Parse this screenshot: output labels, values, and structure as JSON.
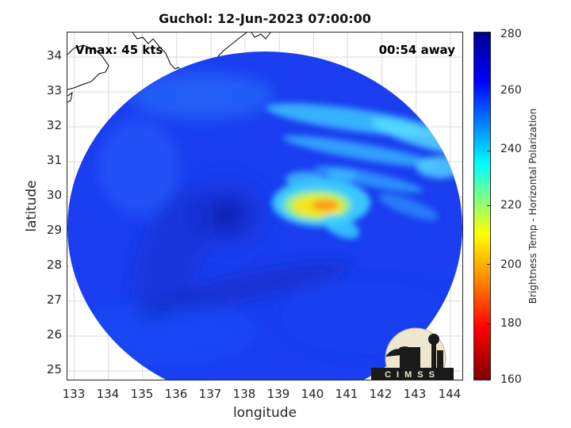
{
  "title": "Guchol: 12-Jun-2023 07:00:00",
  "annotations": {
    "vmax": "Vmax: 45 kts",
    "time_away": "00:54 away"
  },
  "axes": {
    "xlabel": "longitude",
    "ylabel": "latitude",
    "xlim": [
      132.9,
      144.5
    ],
    "ylim": [
      24.7,
      34.7
    ],
    "xticks": [
      "133",
      "134",
      "135",
      "136",
      "137",
      "138",
      "139",
      "140",
      "141",
      "142",
      "143",
      "144"
    ],
    "yticks": [
      "25",
      "26",
      "27",
      "28",
      "29",
      "30",
      "31",
      "32",
      "33",
      "34"
    ]
  },
  "colorbar": {
    "label": "Brightness Temp - Horizontal Polarization",
    "ticks": [
      "280",
      "260",
      "240",
      "220",
      "200",
      "180",
      "160"
    ],
    "range": [
      160,
      280
    ],
    "colormap": "jet"
  },
  "logo_text": "CIMSS",
  "colors": {
    "cold_background": "#1a3ef0",
    "deep_core": "#0f23b8",
    "rainband": "#34b8ff",
    "convection": "#f2e01e",
    "hot_core": "#ff9a18"
  }
}
